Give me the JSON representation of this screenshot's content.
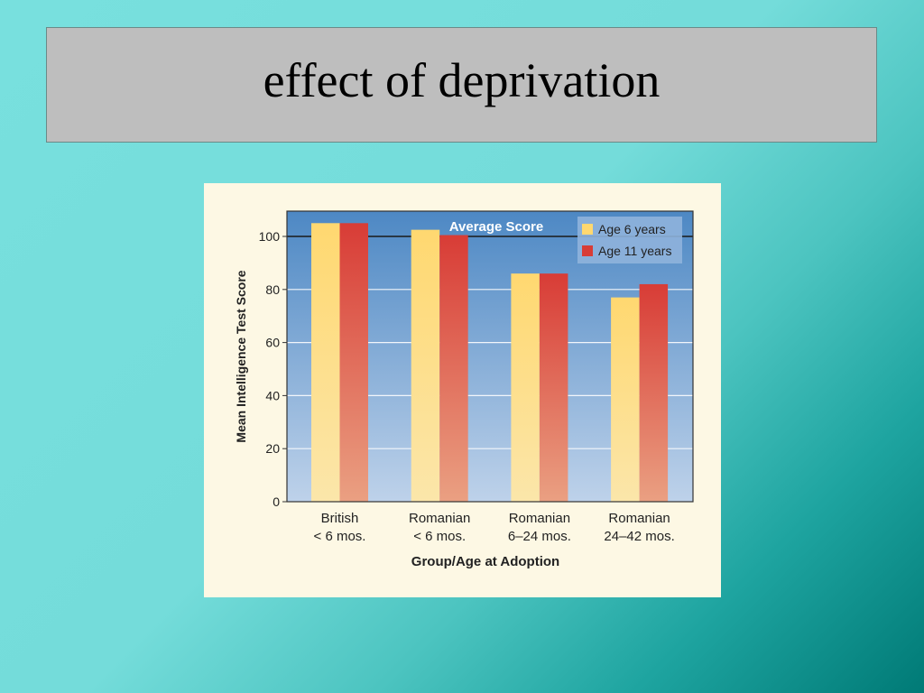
{
  "slide": {
    "title": "effect of deprivation"
  },
  "chart_data": {
    "type": "bar",
    "title": "Average Score",
    "ylabel": "Mean Intelligence Test Score",
    "xlabel": "Group/Age at Adoption",
    "categories": [
      [
        "British",
        "< 6 mos."
      ],
      [
        "Romanian",
        "< 6 mos."
      ],
      [
        "Romanian",
        "6–24 mos."
      ],
      [
        "Romanian",
        "24–42 mos."
      ]
    ],
    "series": [
      {
        "name": "Age 6 years",
        "values": [
          105,
          102.5,
          86,
          77
        ],
        "color_top": "#ffd870",
        "color_bottom": "#fbe6aa"
      },
      {
        "name": "Age 11 years",
        "values": [
          105,
          100.5,
          86,
          82
        ],
        "color_top": "#d83c36",
        "color_bottom": "#eaa082"
      }
    ],
    "ylim": [
      0,
      100
    ],
    "yticks": [
      0,
      20,
      40,
      60,
      80,
      100
    ],
    "grid": true,
    "legend_position": "top-right",
    "plot_bg_top": "#4d88c4",
    "plot_bg_bottom": "#bed2ea"
  }
}
